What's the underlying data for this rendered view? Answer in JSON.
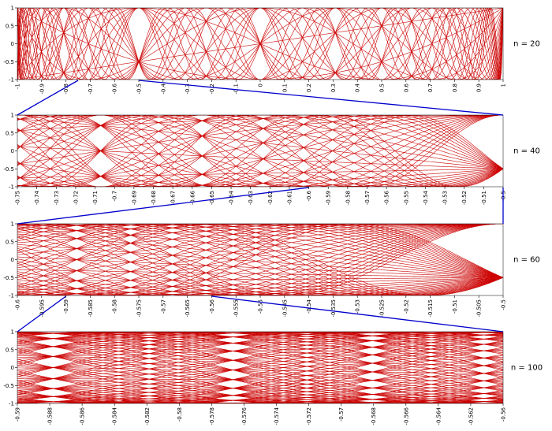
{
  "charts": [
    {
      "type": "line",
      "label": "n = 20",
      "n": 20,
      "color": "#cc0000",
      "xlim": [
        -1,
        1
      ],
      "ylim": [
        -1,
        1
      ],
      "xticks": [
        -1,
        -0.9,
        -0.8,
        -0.7,
        -0.6,
        -0.5,
        -0.4,
        -0.3,
        -0.2,
        -0.1,
        0,
        0.1,
        0.2,
        0.3,
        0.4,
        0.5,
        0.6,
        0.7,
        0.8,
        0.9,
        1
      ],
      "yticks": [
        1,
        0.5,
        0,
        -0.5,
        -1
      ]
    },
    {
      "type": "line",
      "label": "n = 40",
      "n": 40,
      "color": "#cc0000",
      "xlim": [
        -0.75,
        -0.5
      ],
      "ylim": [
        -1,
        1
      ],
      "xticks": [
        -0.75,
        -0.74,
        -0.73,
        -0.72,
        -0.71,
        -0.7,
        -0.69,
        -0.68,
        -0.67,
        -0.66,
        -0.65,
        -0.64,
        -0.63,
        -0.62,
        -0.61,
        -0.6,
        -0.59,
        -0.58,
        -0.57,
        -0.56,
        -0.55,
        -0.54,
        -0.53,
        -0.52,
        -0.51,
        -0.5
      ],
      "yticks": [
        1,
        0.5,
        0,
        -0.5,
        -1
      ]
    },
    {
      "type": "line",
      "label": "n = 60",
      "n": 60,
      "color": "#cc0000",
      "xlim": [
        -0.6,
        -0.5
      ],
      "ylim": [
        -1,
        1
      ],
      "xticks": [
        -0.6,
        -0.595,
        -0.59,
        -0.585,
        -0.58,
        -0.575,
        -0.57,
        -0.565,
        -0.56,
        -0.555,
        -0.55,
        -0.545,
        -0.54,
        -0.535,
        -0.53,
        -0.525,
        -0.52,
        -0.515,
        -0.51,
        -0.505,
        -0.5
      ],
      "yticks": [
        1,
        0.5,
        0,
        -0.5,
        -1
      ]
    },
    {
      "type": "line",
      "label": "n = 100",
      "n": 100,
      "color": "#cc0000",
      "xlim": [
        -0.59,
        -0.56
      ],
      "ylim": [
        -1,
        1
      ],
      "xticks": [
        -0.59,
        -0.588,
        -0.586,
        -0.584,
        -0.582,
        -0.58,
        -0.578,
        -0.576,
        -0.574,
        -0.572,
        -0.57,
        -0.568,
        -0.566,
        -0.564,
        -0.562,
        -0.56
      ],
      "yticks": [
        1,
        0.5,
        0,
        -0.5,
        -1
      ]
    }
  ],
  "zoom_color": "#0000cc"
}
